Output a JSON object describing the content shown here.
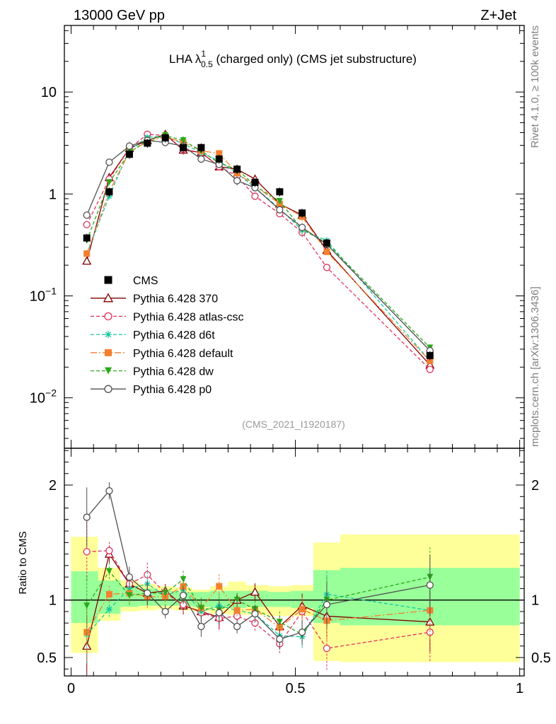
{
  "header": {
    "energy_label": "13000 GeV pp",
    "process_label": "Z+Jet",
    "rivet_label": "Rivet 4.1.0, ≥ 100k events",
    "site_label": "mcplots.cern.ch [arXiv:1306.3436]",
    "analysis_label": "(CMS_2021_I1920187)"
  },
  "title": {
    "prefix": "LHA λ",
    "sup": "1",
    "sub": "0.5",
    "suffix": " (charged only) (CMS jet substructure)"
  },
  "colors": {
    "band_inner": "#99ff99",
    "band_outer": "#ffff99"
  },
  "chart_data": [
    {
      "type": "scatter",
      "panel": "main",
      "yscale": "log",
      "xlim": [
        -0.015,
        1.01
      ],
      "ylim": [
        0.0032,
        45
      ],
      "yticks": [
        {
          "value": 10,
          "base": "10",
          "exp": ""
        },
        {
          "value": 1,
          "base": "1",
          "exp": ""
        },
        {
          "value": 0.1,
          "base": "10",
          "exp": "−1"
        },
        {
          "value": 0.01,
          "base": "10",
          "exp": "−2"
        }
      ],
      "x": [
        0.035,
        0.085,
        0.13,
        0.17,
        0.21,
        0.25,
        0.29,
        0.33,
        0.37,
        0.41,
        0.465,
        0.515,
        0.57,
        0.8
      ],
      "legend": "middle-left",
      "series": [
        {
          "name": "CMS",
          "color": "#000000",
          "marker": "square",
          "line": "none",
          "dash": "none",
          "values": [
            0.37,
            1.05,
            2.45,
            3.15,
            3.55,
            2.85,
            2.85,
            2.2,
            1.75,
            1.3,
            1.05,
            0.65,
            0.33,
            0.026
          ]
        },
        {
          "name": "Pythia 6.428 370",
          "color": "#800000",
          "marker": "triangle-open",
          "line": "solid",
          "dash": "none",
          "values": [
            0.22,
            1.45,
            2.8,
            3.35,
            3.85,
            2.7,
            2.55,
            1.85,
            1.75,
            1.4,
            0.8,
            0.62,
            0.28,
            0.021
          ]
        },
        {
          "name": "Pythia 6.428 atlas-csc",
          "color": "#e0315e",
          "marker": "circle-open",
          "line": "dashed",
          "dash": "5,3",
          "values": [
            0.5,
            1.4,
            2.8,
            3.85,
            3.75,
            2.75,
            2.55,
            1.85,
            1.5,
            0.95,
            0.64,
            0.42,
            0.19,
            0.019
          ]
        },
        {
          "name": "Pythia 6.428 d6t",
          "color": "#17c5a0",
          "marker": "asterisk",
          "line": "dashed",
          "dash": "5,3",
          "values": [
            0.26,
            0.95,
            2.7,
            3.6,
            3.7,
            3.1,
            2.55,
            2.1,
            1.6,
            1.15,
            0.72,
            0.44,
            0.35,
            0.023
          ]
        },
        {
          "name": "Pythia 6.428 default",
          "color": "#f28030",
          "marker": "square",
          "line": "dashdot",
          "dash": "9,3,2,3",
          "values": [
            0.26,
            1.05,
            2.6,
            3.25,
            3.65,
            3.2,
            2.65,
            2.5,
            1.6,
            1.2,
            0.8,
            0.6,
            0.27,
            0.023
          ]
        },
        {
          "name": "Pythia 6.428 dw",
          "color": "#2aa81a",
          "marker": "triangle-down",
          "line": "dashed",
          "dash": "5,3",
          "values": [
            0.35,
            1.3,
            2.55,
            3.35,
            3.75,
            3.35,
            2.65,
            2.0,
            1.75,
            1.2,
            0.85,
            0.45,
            0.33,
            0.031
          ]
        },
        {
          "name": "Pythia 6.428 p0",
          "color": "#505050",
          "marker": "circle-open",
          "line": "solid",
          "dash": "none",
          "values": [
            0.62,
            2.05,
            2.95,
            3.35,
            3.2,
            2.95,
            2.2,
            1.95,
            1.35,
            1.15,
            0.7,
            0.47,
            0.32,
            0.029
          ]
        }
      ]
    },
    {
      "type": "line",
      "panel": "ratio",
      "ylabel": "Ratio to CMS",
      "xlim": [
        -0.015,
        1.01
      ],
      "ylim": [
        0.34,
        2.32
      ],
      "yticks": [
        0.5,
        1,
        2
      ],
      "xticks": [
        0,
        0.5,
        1
      ],
      "xtick_labels": [
        "0",
        "0.5",
        "1"
      ],
      "bands": [
        {
          "xlo": 0.0,
          "xhi": 0.06,
          "inner": [
            0.8,
            1.25
          ],
          "outer": [
            0.54,
            1.55
          ]
        },
        {
          "xlo": 0.06,
          "xhi": 0.11,
          "inner": [
            0.88,
            1.17
          ],
          "outer": [
            0.82,
            1.28
          ]
        },
        {
          "xlo": 0.11,
          "xhi": 0.15,
          "inner": [
            0.94,
            1.12
          ],
          "outer": [
            0.9,
            1.17
          ]
        },
        {
          "xlo": 0.15,
          "xhi": 0.19,
          "inner": [
            0.95,
            1.1
          ],
          "outer": [
            0.91,
            1.14
          ]
        },
        {
          "xlo": 0.19,
          "xhi": 0.23,
          "inner": [
            0.95,
            1.08
          ],
          "outer": [
            0.92,
            1.12
          ]
        },
        {
          "xlo": 0.23,
          "xhi": 0.27,
          "inner": [
            0.95,
            1.07
          ],
          "outer": [
            0.91,
            1.11
          ]
        },
        {
          "xlo": 0.27,
          "xhi": 0.31,
          "inner": [
            0.94,
            1.07
          ],
          "outer": [
            0.9,
            1.09
          ]
        },
        {
          "xlo": 0.31,
          "xhi": 0.35,
          "inner": [
            0.93,
            1.08
          ],
          "outer": [
            0.88,
            1.12
          ]
        },
        {
          "xlo": 0.35,
          "xhi": 0.39,
          "inner": [
            0.93,
            1.08
          ],
          "outer": [
            0.87,
            1.16
          ]
        },
        {
          "xlo": 0.39,
          "xhi": 0.44,
          "inner": [
            0.94,
            1.08
          ],
          "outer": [
            0.87,
            1.13
          ]
        },
        {
          "xlo": 0.44,
          "xhi": 0.49,
          "inner": [
            0.94,
            1.07
          ],
          "outer": [
            0.86,
            1.12
          ]
        },
        {
          "xlo": 0.49,
          "xhi": 0.54,
          "inner": [
            0.93,
            1.08
          ],
          "outer": [
            0.86,
            1.13
          ]
        },
        {
          "xlo": 0.54,
          "xhi": 0.6,
          "inner": [
            0.8,
            1.26
          ],
          "outer": [
            0.47,
            1.5
          ]
        },
        {
          "xlo": 0.6,
          "xhi": 1.0,
          "inner": [
            0.78,
            1.28
          ],
          "outer": [
            0.46,
            1.57
          ]
        }
      ],
      "series": [
        {
          "name": "Pythia 6.428 370",
          "values": [
            0.6,
            1.4,
            1.14,
            1.06,
            1.08,
            0.95,
            0.9,
            0.85,
            1.0,
            1.07,
            0.77,
            0.95,
            0.86,
            0.81
          ]
        },
        {
          "name": "Pythia 6.428 atlas-csc",
          "values": [
            1.42,
            1.43,
            1.14,
            1.22,
            1.06,
            0.96,
            0.89,
            0.84,
            0.86,
            0.8,
            0.62,
            0.9,
            0.58,
            0.72
          ]
        },
        {
          "name": "Pythia 6.428 d6t",
          "values": [
            0.7,
            0.92,
            1.1,
            1.14,
            1.04,
            1.09,
            0.9,
            0.95,
            0.91,
            0.88,
            0.69,
            0.68,
            1.05,
            0.91
          ]
        },
        {
          "name": "Pythia 6.428 default",
          "values": [
            0.72,
            1.05,
            1.06,
            1.03,
            1.03,
            1.12,
            0.93,
            1.12,
            0.91,
            0.92,
            0.76,
            0.92,
            0.82,
            0.91
          ]
        },
        {
          "name": "Pythia 6.428 dw",
          "values": [
            0.95,
            1.25,
            1.04,
            1.06,
            1.06,
            1.18,
            0.93,
            0.91,
            1.0,
            0.92,
            0.81,
            0.7,
            1.0,
            1.2
          ]
        },
        {
          "name": "Pythia 6.428 p0",
          "values": [
            1.72,
            1.95,
            1.2,
            1.06,
            0.9,
            1.04,
            0.77,
            0.89,
            0.77,
            0.88,
            0.66,
            0.72,
            0.96,
            1.13
          ]
        }
      ]
    }
  ]
}
